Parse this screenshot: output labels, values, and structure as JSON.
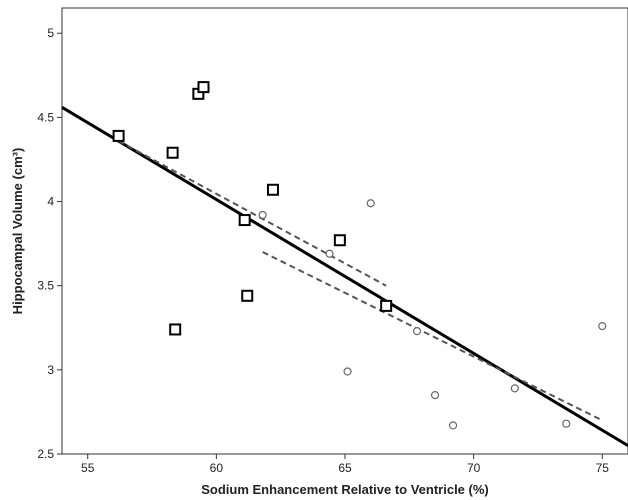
{
  "chart_data": {
    "type": "scatter",
    "xlabel": "Sodium Enhancement Relative to Ventricle (%)",
    "ylabel": "Hippocampal Volume (cm³)",
    "xlim": [
      54,
      76
    ],
    "ylim": [
      2.5,
      5.15
    ],
    "x_ticks": [
      55,
      60,
      65,
      70,
      75
    ],
    "y_ticks": [
      2.5,
      3,
      3.5,
      4,
      4.5,
      5
    ],
    "grid": false,
    "series": [
      {
        "marker": "square",
        "points": [
          {
            "x": 56.2,
            "y": 4.39
          },
          {
            "x": 58.3,
            "y": 4.29
          },
          {
            "x": 59.3,
            "y": 4.64
          },
          {
            "x": 59.5,
            "y": 4.68
          },
          {
            "x": 58.4,
            "y": 3.24
          },
          {
            "x": 61.1,
            "y": 3.89
          },
          {
            "x": 61.2,
            "y": 3.44
          },
          {
            "x": 62.2,
            "y": 4.07
          },
          {
            "x": 64.8,
            "y": 3.77
          },
          {
            "x": 66.6,
            "y": 3.38
          }
        ]
      },
      {
        "marker": "circle",
        "points": [
          {
            "x": 61.8,
            "y": 3.92
          },
          {
            "x": 64.4,
            "y": 3.69
          },
          {
            "x": 66.0,
            "y": 3.99
          },
          {
            "x": 65.1,
            "y": 2.99
          },
          {
            "x": 67.8,
            "y": 3.23
          },
          {
            "x": 68.5,
            "y": 2.85
          },
          {
            "x": 69.2,
            "y": 2.67
          },
          {
            "x": 71.6,
            "y": 2.89
          },
          {
            "x": 73.6,
            "y": 2.68
          },
          {
            "x": 75.0,
            "y": 3.26
          }
        ]
      }
    ],
    "fit_lines": [
      {
        "style": "solid",
        "x": [
          54,
          76
        ],
        "y": [
          4.56,
          2.55
        ]
      },
      {
        "style": "dashed",
        "x": [
          56.2,
          66.6
        ],
        "y": [
          4.36,
          3.5
        ]
      },
      {
        "style": "dashed",
        "x": [
          61.8,
          75.0
        ],
        "y": [
          3.7,
          2.7
        ]
      }
    ]
  }
}
